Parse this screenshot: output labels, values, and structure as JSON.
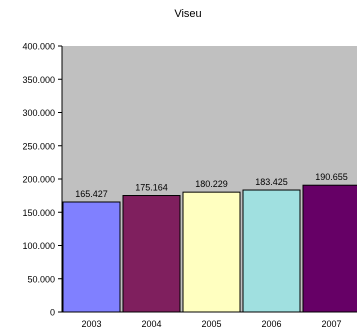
{
  "chart_data": {
    "type": "bar",
    "title": "Viseu",
    "xlabel": "",
    "ylabel": "",
    "categories": [
      "2003",
      "2004",
      "2005",
      "2006",
      "2007"
    ],
    "values": [
      165427,
      175164,
      180229,
      183425,
      190655
    ],
    "value_labels": [
      "165.427",
      "175.164",
      "180.229",
      "183.425",
      "190.655"
    ],
    "bar_colors": [
      "#8080ff",
      "#7f1f5e",
      "#ffffc0",
      "#a0e0e0",
      "#660066"
    ],
    "ylim": [
      0,
      400000
    ],
    "yticks": [
      0,
      50000,
      100000,
      150000,
      200000,
      250000,
      300000,
      350000,
      400000
    ],
    "ytick_labels": [
      "0",
      "50.000",
      "100.000",
      "150.000",
      "200.000",
      "250.000",
      "300.000",
      "350.000",
      "400.000"
    ],
    "plot_background": "#c0c0c0",
    "grid": false,
    "legend": "none"
  }
}
